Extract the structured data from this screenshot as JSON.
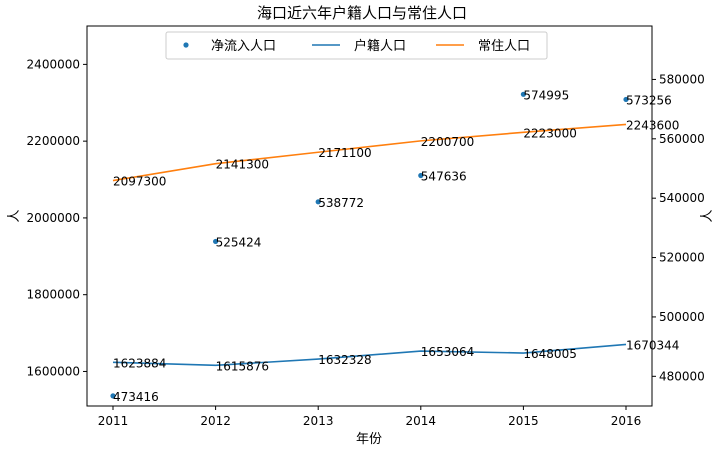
{
  "chart_data": {
    "type": "line",
    "title": "海口近六年户籍人口与常住人口",
    "xlabel": "年份",
    "ylabel_left": "人",
    "ylabel_right": "人",
    "categories": [
      "2011",
      "2012",
      "2013",
      "2014",
      "2015",
      "2016"
    ],
    "left_axis": {
      "ylim": [
        1510000,
        2500000
      ],
      "ticks": [
        1600000,
        1800000,
        2000000,
        2200000,
        2400000
      ],
      "tick_labels": [
        "1600000",
        "1800000",
        "2000000",
        "2200000",
        "2400000"
      ]
    },
    "right_axis": {
      "ylim": [
        470000,
        598000
      ],
      "ticks": [
        480000,
        500000,
        520000,
        540000,
        560000,
        580000
      ],
      "tick_labels": [
        "480000",
        "500000",
        "520000",
        "540000",
        "560000",
        "580000"
      ]
    },
    "series": [
      {
        "name": "净流入人口",
        "type": "scatter",
        "axis": "right",
        "color": "#1f77b4",
        "values": [
          473416,
          525424,
          538772,
          547636,
          574995,
          573256
        ],
        "labels": [
          "473416",
          "525424",
          "538772",
          "547636",
          "574995",
          "573256"
        ]
      },
      {
        "name": "户籍人口",
        "type": "line",
        "axis": "left",
        "color": "#1f77b4",
        "values": [
          1623884,
          1615876,
          1632328,
          1653064,
          1648005,
          1670344
        ],
        "labels": [
          "1623884",
          "1615876",
          "1632328",
          "1653064",
          "1648005",
          "1670344"
        ]
      },
      {
        "name": "常住人口",
        "type": "line",
        "axis": "left",
        "color": "#ff7f0e",
        "values": [
          2097300,
          2141300,
          2171100,
          2200700,
          2223000,
          2243600
        ],
        "labels": [
          "2097300",
          "2141300",
          "2171100",
          "2200700",
          "2223000",
          "2243600"
        ]
      }
    ],
    "legend": {
      "placement": "top-center",
      "orientation": "horizontal"
    },
    "grid": false
  }
}
